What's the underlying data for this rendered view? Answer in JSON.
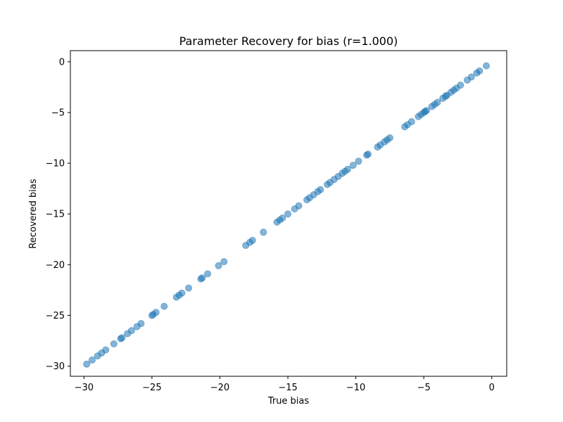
{
  "chart_data": {
    "type": "scatter",
    "title": "Parameter Recovery for bias (r=1.000)",
    "xlabel": "True bias",
    "ylabel": "Recovered bias",
    "xlim": [
      -31.0,
      1.1
    ],
    "ylim": [
      -31.0,
      1.1
    ],
    "xticks": [
      -30,
      -25,
      -20,
      -15,
      -10,
      -5,
      0
    ],
    "yticks": [
      -30,
      -25,
      -20,
      -15,
      -10,
      -5,
      0
    ],
    "grid": false,
    "marker_color": "#1f77b4",
    "marker_opacity": 0.55,
    "series": [
      {
        "points": [
          [
            -29.8,
            -29.8
          ],
          [
            -29.4,
            -29.4
          ],
          [
            -29.0,
            -29.0
          ],
          [
            -28.7,
            -28.7
          ],
          [
            -28.4,
            -28.4
          ],
          [
            -27.8,
            -27.8
          ],
          [
            -27.3,
            -27.3
          ],
          [
            -27.2,
            -27.2
          ],
          [
            -26.8,
            -26.8
          ],
          [
            -26.5,
            -26.5
          ],
          [
            -26.1,
            -26.1
          ],
          [
            -25.8,
            -25.8
          ],
          [
            -25.0,
            -25.0
          ],
          [
            -24.9,
            -24.9
          ],
          [
            -24.7,
            -24.7
          ],
          [
            -24.1,
            -24.1
          ],
          [
            -23.2,
            -23.2
          ],
          [
            -23.0,
            -23.0
          ],
          [
            -22.8,
            -22.8
          ],
          [
            -22.3,
            -22.3
          ],
          [
            -21.4,
            -21.4
          ],
          [
            -21.3,
            -21.3
          ],
          [
            -20.9,
            -20.9
          ],
          [
            -20.1,
            -20.1
          ],
          [
            -19.7,
            -19.7
          ],
          [
            -18.1,
            -18.1
          ],
          [
            -17.8,
            -17.8
          ],
          [
            -17.6,
            -17.6
          ],
          [
            -16.8,
            -16.8
          ],
          [
            -15.8,
            -15.8
          ],
          [
            -15.6,
            -15.6
          ],
          [
            -15.4,
            -15.4
          ],
          [
            -15.0,
            -15.0
          ],
          [
            -14.5,
            -14.5
          ],
          [
            -14.2,
            -14.2
          ],
          [
            -13.6,
            -13.6
          ],
          [
            -13.4,
            -13.4
          ],
          [
            -13.1,
            -13.1
          ],
          [
            -12.8,
            -12.8
          ],
          [
            -12.6,
            -12.6
          ],
          [
            -12.1,
            -12.1
          ],
          [
            -11.9,
            -11.9
          ],
          [
            -11.6,
            -11.6
          ],
          [
            -11.3,
            -11.3
          ],
          [
            -11.0,
            -11.0
          ],
          [
            -10.8,
            -10.8
          ],
          [
            -10.6,
            -10.6
          ],
          [
            -10.2,
            -10.2
          ],
          [
            -9.8,
            -9.8
          ],
          [
            -9.2,
            -9.2
          ],
          [
            -9.1,
            -9.1
          ],
          [
            -8.4,
            -8.4
          ],
          [
            -8.2,
            -8.2
          ],
          [
            -7.9,
            -7.9
          ],
          [
            -7.7,
            -7.7
          ],
          [
            -7.5,
            -7.5
          ],
          [
            -6.4,
            -6.4
          ],
          [
            -6.2,
            -6.2
          ],
          [
            -5.9,
            -5.9
          ],
          [
            -5.4,
            -5.4
          ],
          [
            -5.2,
            -5.2
          ],
          [
            -5.0,
            -5.0
          ],
          [
            -4.9,
            -4.9
          ],
          [
            -4.8,
            -4.8
          ],
          [
            -4.4,
            -4.4
          ],
          [
            -4.2,
            -4.2
          ],
          [
            -4.0,
            -4.0
          ],
          [
            -3.6,
            -3.6
          ],
          [
            -3.4,
            -3.4
          ],
          [
            -3.3,
            -3.3
          ],
          [
            -3.0,
            -3.0
          ],
          [
            -2.8,
            -2.8
          ],
          [
            -2.6,
            -2.6
          ],
          [
            -2.3,
            -2.3
          ],
          [
            -1.8,
            -1.8
          ],
          [
            -1.5,
            -1.5
          ],
          [
            -1.1,
            -1.1
          ],
          [
            -0.9,
            -0.9
          ],
          [
            -0.4,
            -0.4
          ]
        ]
      }
    ]
  }
}
